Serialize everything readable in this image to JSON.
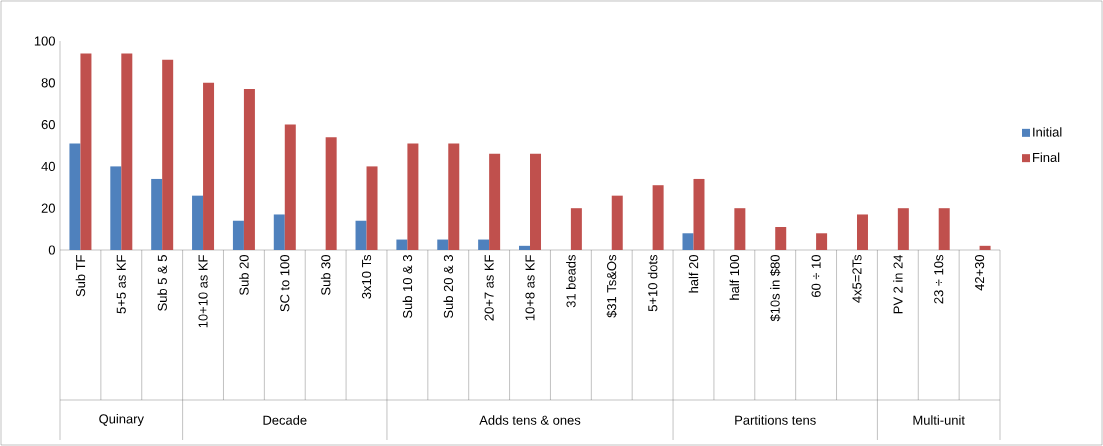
{
  "chart_data": {
    "type": "bar",
    "categories": [
      "Sub TF",
      "5+5 as KF",
      "Sub 5 & 5",
      "10+10 as KF",
      "Sub 20",
      "SC to 100",
      "Sub 30",
      "3x10 Ts",
      "Sub 10 & 3",
      "Sub 20 & 3",
      "20+7 as KF",
      "10+8 as KF",
      "31 beads",
      "$31 Ts&Os",
      "5+10 dots",
      "half 20",
      "half 100",
      "$10s in $80",
      "60 ÷ 10",
      "4x5=2Ts",
      "PV 2 in 24",
      "23 ÷ 10s",
      "42+30"
    ],
    "series": [
      {
        "name": "Initial",
        "color": "#4f81bd",
        "values": [
          51,
          40,
          34,
          26,
          14,
          17,
          0,
          14,
          5,
          5,
          5,
          2,
          0,
          0,
          0,
          8,
          0,
          0,
          0,
          0,
          0,
          0,
          0
        ]
      },
      {
        "name": "Final",
        "color": "#c0504d",
        "values": [
          94,
          94,
          91,
          80,
          77,
          60,
          54,
          40,
          51,
          51,
          46,
          46,
          20,
          26,
          31,
          34,
          20,
          11,
          8,
          17,
          20,
          20,
          2
        ]
      }
    ],
    "annotations": [
      "Quinary",
      "Decade",
      "Adds tens & ones",
      "Partitions tens",
      "Multi-unit"
    ],
    "ylim": [
      0,
      100
    ],
    "yticks": [
      0,
      20,
      40,
      60,
      80,
      100
    ],
    "grid": false,
    "legend": "right"
  }
}
